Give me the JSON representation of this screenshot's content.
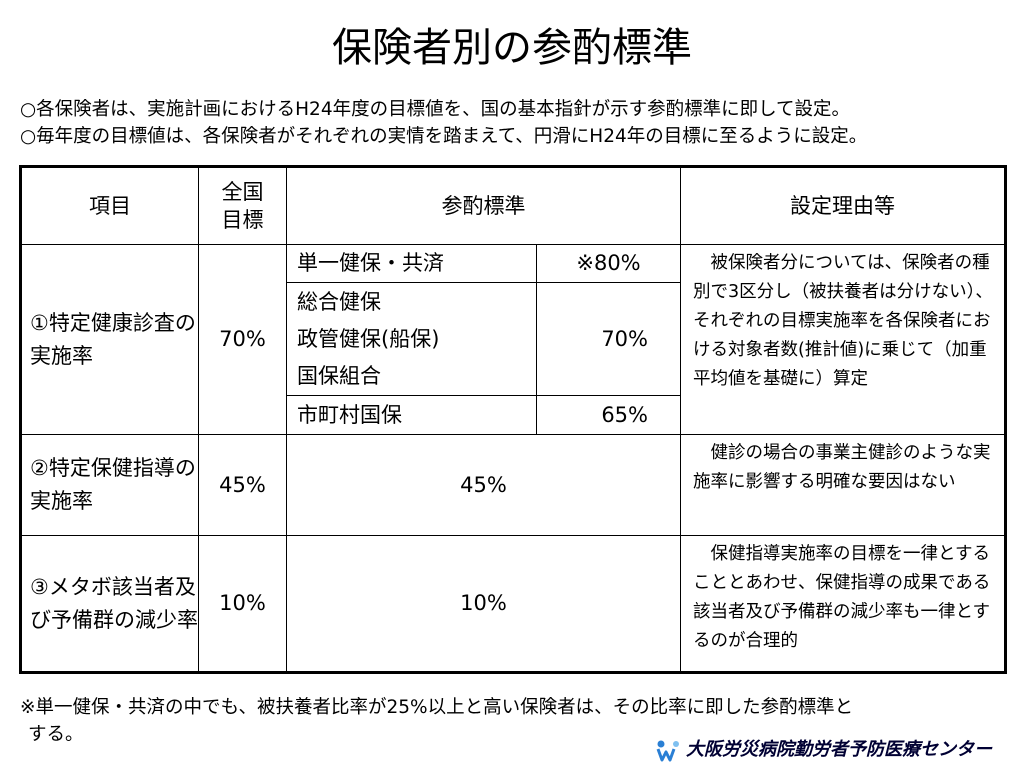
{
  "title": "保険者別の参酌標準",
  "intro": [
    "○各保険者は、実施計画におけるH24年度の目標値を、国の基本指針が示す参酌標準に即して設定。",
    "○毎年度の目標値は、各保険者がそれぞれの実情を踏まえて、円滑にH24年の目標に至るように設定。"
  ],
  "table": {
    "headers": {
      "item": "項目",
      "national_line1": "全国",
      "national_line2": "目標",
      "standard": "参酌標準",
      "reason": "設定理由等"
    },
    "rows": [
      {
        "item": "①特定健康診査の実施率",
        "national": "70%",
        "sub": [
          {
            "label": "単一健保・共済",
            "value": "※80%"
          },
          {
            "label_lines": [
              "総合健保",
              "政管健保(船保)",
              "国保組合"
            ],
            "value": "70%"
          },
          {
            "label": "市町村国保",
            "value": "65%"
          }
        ],
        "reason": "　被保険者分については、保険者の種別で3区分し（被扶養者は分けない）、それぞれの目標実施率を各保険者における対象者数(推計値)に乗じて（加重平均値を基礎に）算定"
      },
      {
        "item": "②特定保健指導の実施率",
        "national": "45%",
        "standard": "45%",
        "reason": "　健診の場合の事業主健診のような実施率に影響する明確な要因はない"
      },
      {
        "item": "③メタボ該当者及び予備群の減少率",
        "national": "10%",
        "standard": "10%",
        "reason": "　保健指導実施率の目標を一律とすることとあわせ、保健指導の成果である該当者及び予備群の減少率も一律とするのが合理的"
      }
    ]
  },
  "footnote": {
    "line1": "※単一健保・共済の中でも、被扶養者比率が25%以上と高い保険者は、その比率に即した参酌標準と",
    "line2": "する。"
  },
  "logo_text": "大阪労災病院勤労者予防医療センター",
  "colors": {
    "logo_icon": "#2a7fd4",
    "logo_text": "#000033"
  }
}
